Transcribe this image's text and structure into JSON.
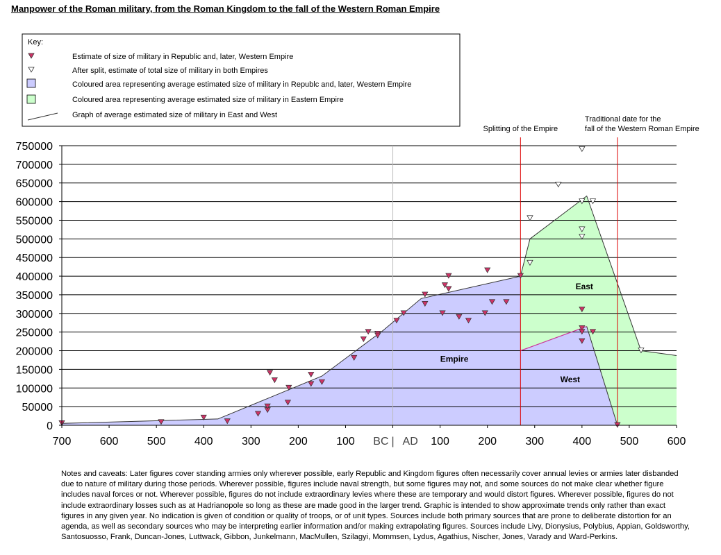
{
  "title": "Manpower of the Roman military, from the Roman Kingdom to the fall of the Western Roman Empire",
  "key": {
    "heading": "Key:",
    "items": [
      "Estimate of size of military in Republic and, later, Western Empire",
      "After split, estimate of total size of military in both Empires",
      "Coloured area representing average estimated size of military in Republc and, later, Western Empire",
      "Coloured area representing average estimated size of military in Eastern Empire",
      "Graph of average estimated size of military in East and West"
    ]
  },
  "colors": {
    "west_fill": "#ccccff",
    "east_fill": "#ccffcc",
    "west_marker": "#cc3366",
    "vline": "#dd0000",
    "gridline": "#000000"
  },
  "notes": "Notes and caveats: Later figures cover standing armies only wherever possible, early Republic and Kingdom figures often necessarily cover annual levies or armies later disbanded due to nature of military during those periods. Wherever possible, figures include naval strength, but some figures may not, and some sources do not make clear whether figure includes naval forces or not. Wherever possible, figures do not include extraordinary levies where these are temporary and would distort figures. Wherever possible, figures do not include extraordinary losses such as at Hadrianopole so long as these are made good in the larger trend. Graphic is intended to show approximate trends only rather than exact figures in any given year. No indication is given of condition or quality of troops, or of unit types. Sources include both primary sources that are prone to deliberate distortion for an agenda, as well as secondary sources who may be interpreting earlier information and/or making extrapolating figures. Sources include Livy, Dionysius, Polybius, Appian, Goldsworthy, Santosuosso, Frank, Duncan-Jones, Luttwack, Gibbon, Junkelmann, MacMullen, Szilagyi, Mommsen, Lydus, Agathius, Nischer, Jones, Varady and Ward-Perkins.",
  "chart_data": {
    "type": "area",
    "xlim": [
      -700,
      600
    ],
    "ylim": [
      0,
      750000
    ],
    "x_ticks": [
      {
        "value": -700,
        "label": "700"
      },
      {
        "value": -600,
        "label": "600"
      },
      {
        "value": -500,
        "label": "500"
      },
      {
        "value": -400,
        "label": "400"
      },
      {
        "value": -300,
        "label": "300"
      },
      {
        "value": -200,
        "label": "200"
      },
      {
        "value": -100,
        "label": "100"
      },
      {
        "value": 100,
        "label": "100"
      },
      {
        "value": 200,
        "label": "200"
      },
      {
        "value": 300,
        "label": "300"
      },
      {
        "value": 400,
        "label": "400"
      },
      {
        "value": 500,
        "label": "500"
      },
      {
        "value": 600,
        "label": "600"
      }
    ],
    "era_labels": {
      "bc": "BC",
      "ad": "AD",
      "separator": "|"
    },
    "y_ticks": [
      0,
      50000,
      100000,
      150000,
      200000,
      250000,
      300000,
      350000,
      400000,
      450000,
      500000,
      550000,
      600000,
      650000,
      700000,
      750000
    ],
    "grid": true,
    "areas": [
      {
        "name": "Empire",
        "label": "Empire",
        "label_at": [
          130,
          170000
        ],
        "color": "#ccccff",
        "points": [
          [
            -700,
            5000
          ],
          [
            -370,
            17000
          ],
          [
            -150,
            132000
          ],
          [
            -20,
            255000
          ],
          [
            60,
            340000
          ],
          [
            270,
            400000
          ],
          [
            270,
            200000
          ],
          [
            410,
            265000
          ],
          [
            475,
            0
          ]
        ]
      },
      {
        "name": "West",
        "label": "West",
        "label_at": [
          375,
          115000
        ],
        "color": "#ccccff",
        "points": []
      },
      {
        "name": "East",
        "label": "East",
        "label_at": [
          405,
          365000
        ],
        "color": "#ccffcc",
        "points": [
          [
            270,
            400000
          ],
          [
            290,
            500000
          ],
          [
            410,
            615000
          ],
          [
            525,
            200000
          ],
          [
            600,
            187000
          ],
          [
            600,
            0
          ],
          [
            475,
            0
          ],
          [
            410,
            265000
          ],
          [
            270,
            200000
          ]
        ]
      }
    ],
    "average_line": [
      [
        -700,
        5000
      ],
      [
        -370,
        17000
      ],
      [
        -150,
        132000
      ],
      [
        -20,
        255000
      ],
      [
        60,
        340000
      ],
      [
        270,
        400000
      ],
      [
        290,
        500000
      ],
      [
        410,
        615000
      ],
      [
        525,
        200000
      ],
      [
        600,
        187000
      ]
    ],
    "west_line": [
      [
        270,
        200000
      ],
      [
        410,
        265000
      ],
      [
        475,
        0
      ]
    ],
    "west_estimates": [
      [
        -700,
        5000
      ],
      [
        -490,
        8000
      ],
      [
        -400,
        20000
      ],
      [
        -350,
        10000
      ],
      [
        -285,
        30000
      ],
      [
        -265,
        40000
      ],
      [
        -265,
        50000
      ],
      [
        -260,
        140000
      ],
      [
        -250,
        120000
      ],
      [
        -220,
        100000
      ],
      [
        -222,
        60000
      ],
      [
        -173,
        135000
      ],
      [
        -173,
        110000
      ],
      [
        -150,
        115000
      ],
      [
        -82,
        180000
      ],
      [
        -62,
        230000
      ],
      [
        -52,
        250000
      ],
      [
        -32,
        245000
      ],
      [
        -32,
        240000
      ],
      [
        8,
        280000
      ],
      [
        23,
        300000
      ],
      [
        68,
        350000
      ],
      [
        68,
        325000
      ],
      [
        105,
        300000
      ],
      [
        110,
        375000
      ],
      [
        118,
        400000
      ],
      [
        118,
        365000
      ],
      [
        140,
        290000
      ],
      [
        160,
        280000
      ],
      [
        195,
        300000
      ],
      [
        200,
        415000
      ],
      [
        210,
        330000
      ],
      [
        240,
        330000
      ],
      [
        270,
        400000
      ],
      [
        400,
        310000
      ],
      [
        400,
        260000
      ],
      [
        400,
        250000
      ],
      [
        400,
        225000
      ],
      [
        423,
        250000
      ],
      [
        475,
        0
      ]
    ],
    "total_estimates": [
      [
        290,
        435000
      ],
      [
        290,
        555000
      ],
      [
        350,
        645000
      ],
      [
        400,
        740000
      ],
      [
        400,
        600000
      ],
      [
        400,
        525000
      ],
      [
        400,
        505000
      ],
      [
        423,
        600000
      ],
      [
        525,
        200000
      ]
    ],
    "events": [
      {
        "year": 270,
        "label": [
          "Splitting of the Empire"
        ]
      },
      {
        "year": 475,
        "label": [
          "Traditional date for the",
          "fall of the Western Roman Empire"
        ]
      }
    ]
  }
}
